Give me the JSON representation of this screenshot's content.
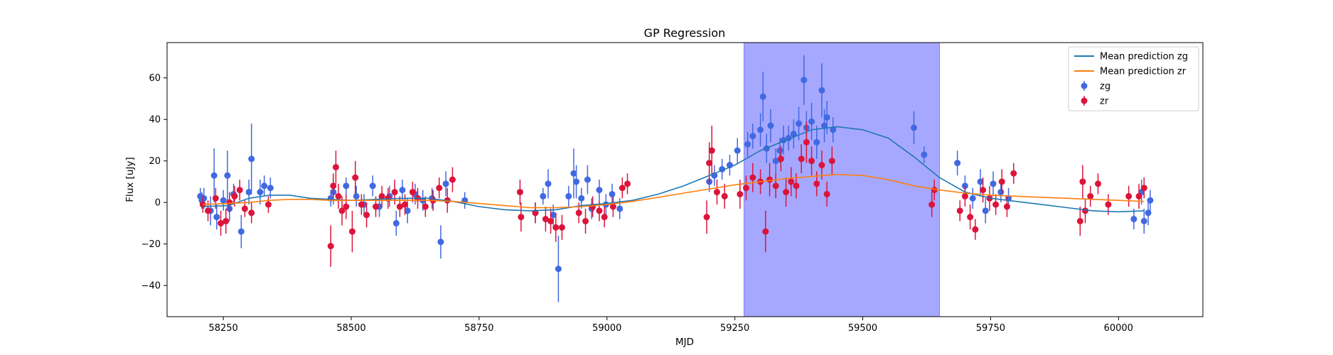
{
  "chart_data": {
    "type": "scatter",
    "title": "GP Regression",
    "xlabel": "MJD",
    "ylabel": "Flux [uJy]",
    "xlim": [
      58140,
      60165
    ],
    "ylim": [
      -55,
      77
    ],
    "xticks": [
      58250,
      58500,
      58750,
      59000,
      59250,
      59500,
      59750,
      60000
    ],
    "yticks": [
      -40,
      -20,
      0,
      20,
      40,
      60
    ],
    "legend_position": "top-right",
    "highlight_region": {
      "x": [
        59268,
        59650
      ],
      "color": "#a6a8ff"
    },
    "lines": [
      {
        "name": "Mean prediction zg",
        "color": "#1f77b4",
        "x": [
          58210,
          58260,
          58300,
          58340,
          58380,
          58420,
          58460,
          58500,
          58550,
          58600,
          58650,
          58700,
          58750,
          58800,
          58850,
          58900,
          58950,
          59000,
          59050,
          59100,
          59150,
          59200,
          59250,
          59300,
          59350,
          59400,
          59450,
          59500,
          59550,
          59600,
          59650,
          59700,
          59750,
          59800,
          59850,
          59900,
          59950,
          60000,
          60050
        ],
        "y": [
          -2,
          -1.5,
          2,
          3.5,
          3.5,
          2,
          1.5,
          1,
          1.5,
          2,
          2,
          0.5,
          -2,
          -3.5,
          -4,
          -3.5,
          -1.5,
          -0.5,
          1,
          4,
          8,
          13,
          18,
          25,
          30,
          35,
          36.5,
          35,
          31,
          22,
          12,
          5,
          2,
          0.5,
          -1,
          -2.5,
          -4,
          -4.5,
          -4
        ]
      },
      {
        "name": "Mean prediction zr",
        "color": "#ff7f0e",
        "x": [
          58210,
          58260,
          58300,
          58340,
          58380,
          58420,
          58460,
          58500,
          58550,
          58600,
          58650,
          58700,
          58750,
          58800,
          58850,
          58900,
          58950,
          59000,
          59050,
          59100,
          59150,
          59200,
          59250,
          59300,
          59350,
          59400,
          59450,
          59500,
          59550,
          59600,
          59650,
          59700,
          59750,
          59800,
          59850,
          59900,
          59950,
          60000,
          60050
        ],
        "y": [
          -1,
          -0.5,
          0,
          1,
          1.5,
          1.5,
          1,
          1,
          1,
          1,
          1,
          0.5,
          -0.5,
          -1.5,
          -2.5,
          -2.5,
          -2,
          -1,
          0.5,
          2.5,
          4.5,
          6.5,
          8.5,
          10,
          11.5,
          12.5,
          13.5,
          13,
          11,
          8,
          6,
          4.5,
          3.5,
          3,
          2.5,
          2,
          1.5,
          1,
          0.5
        ]
      }
    ],
    "series": [
      {
        "name": "zg",
        "color": "#4169e1",
        "points": [
          [
            58205,
            3,
            4
          ],
          [
            58208,
            1,
            4
          ],
          [
            58212,
            2,
            5
          ],
          [
            58225,
            -4,
            7
          ],
          [
            58232,
            13,
            13
          ],
          [
            58237,
            -7,
            6
          ],
          [
            58250,
            1,
            5
          ],
          [
            58258,
            13,
            12
          ],
          [
            58262,
            -3,
            6
          ],
          [
            58270,
            4,
            5
          ],
          [
            58285,
            -14,
            8
          ],
          [
            58300,
            5,
            6
          ],
          [
            58305,
            21,
            17
          ],
          [
            58322,
            5,
            6
          ],
          [
            58330,
            8,
            5
          ],
          [
            58342,
            7,
            5
          ],
          [
            58460,
            2,
            4
          ],
          [
            58465,
            5,
            6
          ],
          [
            58490,
            8,
            4
          ],
          [
            58510,
            3,
            5
          ],
          [
            58525,
            -1,
            5
          ],
          [
            58542,
            8,
            5
          ],
          [
            58555,
            -2,
            5
          ],
          [
            58575,
            3,
            5
          ],
          [
            58588,
            -10,
            6
          ],
          [
            58600,
            6,
            5
          ],
          [
            58610,
            -4,
            6
          ],
          [
            58625,
            4,
            5
          ],
          [
            58640,
            1,
            5
          ],
          [
            58658,
            2,
            5
          ],
          [
            58675,
            -19,
            8
          ],
          [
            58685,
            9,
            6
          ],
          [
            58722,
            1,
            4
          ],
          [
            58860,
            -5,
            5
          ],
          [
            58875,
            3,
            4
          ],
          [
            58885,
            9,
            7
          ],
          [
            58895,
            -6,
            5
          ],
          [
            58905,
            -32,
            16
          ],
          [
            58925,
            3,
            5
          ],
          [
            58935,
            14,
            12
          ],
          [
            58940,
            10,
            8
          ],
          [
            58950,
            2,
            5
          ],
          [
            58962,
            11,
            7
          ],
          [
            58970,
            -3,
            5
          ],
          [
            58985,
            6,
            5
          ],
          [
            58998,
            -1,
            5
          ],
          [
            59010,
            4,
            5
          ],
          [
            59025,
            -3,
            5
          ],
          [
            59200,
            10,
            5
          ],
          [
            59210,
            13,
            5
          ],
          [
            59225,
            16,
            5
          ],
          [
            59240,
            18,
            5
          ],
          [
            59255,
            25,
            6
          ],
          [
            59275,
            28,
            6
          ],
          [
            59285,
            32,
            6
          ],
          [
            59300,
            35,
            8
          ],
          [
            59305,
            51,
            12
          ],
          [
            59312,
            26,
            7
          ],
          [
            59320,
            37,
            8
          ],
          [
            59330,
            20,
            6
          ],
          [
            59338,
            25,
            6
          ],
          [
            59345,
            30,
            7
          ],
          [
            59355,
            31,
            6
          ],
          [
            59365,
            33,
            7
          ],
          [
            59375,
            38,
            8
          ],
          [
            59385,
            59,
            12
          ],
          [
            59390,
            36,
            8
          ],
          [
            59400,
            39,
            9
          ],
          [
            59410,
            29,
            8
          ],
          [
            59420,
            54,
            13
          ],
          [
            59425,
            37,
            8
          ],
          [
            59430,
            41,
            8
          ],
          [
            59442,
            35,
            6
          ],
          [
            59600,
            36,
            8
          ],
          [
            59620,
            23,
            4
          ],
          [
            59685,
            19,
            6
          ],
          [
            59700,
            8,
            5
          ],
          [
            59715,
            2,
            5
          ],
          [
            59730,
            10,
            6
          ],
          [
            59740,
            -4,
            6
          ],
          [
            59755,
            9,
            6
          ],
          [
            59770,
            5,
            5
          ],
          [
            59785,
            2,
            5
          ],
          [
            60030,
            -8,
            5
          ],
          [
            60045,
            5,
            6
          ],
          [
            60050,
            -9,
            6
          ],
          [
            60058,
            -5,
            6
          ],
          [
            60062,
            1,
            5
          ]
        ]
      },
      {
        "name": "zr",
        "color": "#dc143c",
        "points": [
          [
            58210,
            -1,
            4
          ],
          [
            58220,
            -4,
            5
          ],
          [
            58235,
            2,
            5
          ],
          [
            58245,
            -10,
            6
          ],
          [
            58255,
            -9,
            6
          ],
          [
            58262,
            0,
            5
          ],
          [
            58272,
            3,
            5
          ],
          [
            58282,
            6,
            5
          ],
          [
            58292,
            -3,
            4
          ],
          [
            58305,
            -5,
            5
          ],
          [
            58338,
            -1,
            4
          ],
          [
            58460,
            -21,
            10
          ],
          [
            58465,
            8,
            6
          ],
          [
            58470,
            17,
            8
          ],
          [
            58475,
            3,
            6
          ],
          [
            58482,
            -4,
            7
          ],
          [
            58490,
            -2,
            6
          ],
          [
            58502,
            -14,
            10
          ],
          [
            58508,
            12,
            8
          ],
          [
            58520,
            -1,
            5
          ],
          [
            58530,
            -6,
            6
          ],
          [
            58548,
            -2,
            5
          ],
          [
            58560,
            3,
            5
          ],
          [
            58572,
            2,
            5
          ],
          [
            58585,
            5,
            6
          ],
          [
            58595,
            -2,
            5
          ],
          [
            58605,
            -1,
            5
          ],
          [
            58620,
            5,
            5
          ],
          [
            58630,
            2,
            5
          ],
          [
            58645,
            -2,
            5
          ],
          [
            58660,
            1,
            5
          ],
          [
            58672,
            7,
            5
          ],
          [
            58688,
            1,
            6
          ],
          [
            58698,
            11,
            6
          ],
          [
            58830,
            5,
            6
          ],
          [
            58832,
            -7,
            7
          ],
          [
            58860,
            -5,
            5
          ],
          [
            58880,
            -8,
            6
          ],
          [
            58890,
            -9,
            6
          ],
          [
            58900,
            -12,
            7
          ],
          [
            58912,
            -12,
            6
          ],
          [
            58945,
            -5,
            5
          ],
          [
            58958,
            -9,
            6
          ],
          [
            58972,
            -2,
            5
          ],
          [
            58985,
            -4,
            5
          ],
          [
            58995,
            -7,
            5
          ],
          [
            59012,
            -2,
            5
          ],
          [
            59030,
            7,
            5
          ],
          [
            59040,
            9,
            5
          ],
          [
            59195,
            -7,
            8
          ],
          [
            59200,
            19,
            10
          ],
          [
            59205,
            25,
            12
          ],
          [
            59215,
            5,
            6
          ],
          [
            59230,
            3,
            6
          ],
          [
            59260,
            4,
            7
          ],
          [
            59272,
            7,
            6
          ],
          [
            59285,
            12,
            7
          ],
          [
            59300,
            10,
            6
          ],
          [
            59310,
            -14,
            10
          ],
          [
            59318,
            11,
            8
          ],
          [
            59330,
            8,
            6
          ],
          [
            59340,
            21,
            6
          ],
          [
            59350,
            5,
            7
          ],
          [
            59360,
            10,
            7
          ],
          [
            59370,
            8,
            6
          ],
          [
            59380,
            21,
            7
          ],
          [
            59390,
            29,
            10
          ],
          [
            59400,
            20,
            7
          ],
          [
            59410,
            9,
            6
          ],
          [
            59420,
            18,
            7
          ],
          [
            59430,
            4,
            6
          ],
          [
            59440,
            20,
            7
          ],
          [
            59635,
            -1,
            6
          ],
          [
            59640,
            6,
            5
          ],
          [
            59690,
            -4,
            5
          ],
          [
            59700,
            3,
            5
          ],
          [
            59710,
            -7,
            6
          ],
          [
            59720,
            -13,
            5
          ],
          [
            59735,
            6,
            6
          ],
          [
            59748,
            2,
            6
          ],
          [
            59760,
            -1,
            5
          ],
          [
            59772,
            10,
            6
          ],
          [
            59782,
            -2,
            5
          ],
          [
            59795,
            14,
            5
          ],
          [
            59925,
            -9,
            7
          ],
          [
            59930,
            10,
            8
          ],
          [
            59935,
            -4,
            6
          ],
          [
            59945,
            3,
            5
          ],
          [
            59960,
            9,
            5
          ],
          [
            59980,
            -1,
            5
          ],
          [
            60020,
            3,
            5
          ],
          [
            60040,
            3,
            6
          ],
          [
            60050,
            7,
            5
          ]
        ]
      }
    ]
  }
}
